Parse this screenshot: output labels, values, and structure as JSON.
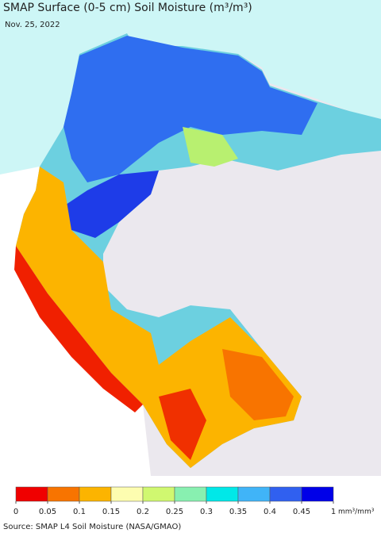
{
  "title": "SMAP Surface (0-5 cm) Soil Moisture (m³/m³)",
  "date": "Nov. 25, 2022",
  "legend": {
    "ticks": [
      0,
      0.05,
      0.1,
      0.15,
      0.2,
      0.25,
      0.3,
      0.35,
      0.4,
      0.45,
      1
    ],
    "unit": "mm³/mm³",
    "colors": [
      "#f00000",
      "#f87400",
      "#fcb400",
      "#fdfdb0",
      "#d0f870",
      "#88f0b0",
      "#00e8e8",
      "#40b4f8",
      "#3060f0",
      "#0000e8"
    ]
  },
  "source": "Source: SMAP L4 Soil Moisture (NASA/GMAO)"
}
